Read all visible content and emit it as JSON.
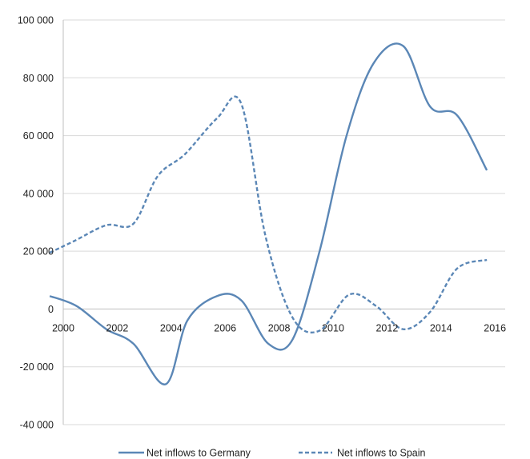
{
  "chart_data": {
    "type": "line",
    "title": "",
    "xlabel": "",
    "ylabel": "",
    "xlim": [
      1999.5,
      2015.7
    ],
    "ylim": [
      -40000,
      100000
    ],
    "x_ticks": [
      2000,
      2002,
      2004,
      2006,
      2008,
      2010,
      2012,
      2014,
      2016
    ],
    "y_ticks": [
      100000,
      80000,
      60000,
      40000,
      20000,
      0,
      -20000,
      -40000
    ],
    "y_tick_labels": [
      "100 000",
      "80 000",
      "60 000",
      "40 000",
      "20 000",
      "0",
      "-20 000",
      "-40 000"
    ],
    "x_tick_labels": [
      "2000",
      "2002",
      "2004",
      "2006",
      "2008",
      "2010",
      "2012",
      "2014",
      "2016"
    ],
    "grid": "horizontal",
    "legend_position": "bottom",
    "color": "#5b87b6",
    "series": [
      {
        "name": "Net inflows to Germany",
        "style": "solid",
        "x": [
          1999.5,
          2000.5,
          2001.6,
          2002.6,
          2003.8,
          2004.6,
          2005.7,
          2006.6,
          2007.6,
          2008.5,
          2009.5,
          2010.5,
          2011.5,
          2012.6,
          2013.6,
          2014.6,
          2015.7
        ],
        "y": [
          4500,
          1000,
          -7000,
          -12000,
          -26000,
          -4000,
          4500,
          3000,
          -12000,
          -10500,
          20000,
          60000,
          85000,
          91000,
          70000,
          67000,
          48000
        ]
      },
      {
        "name": "Net inflows to Spain",
        "style": "dashed",
        "x": [
          1999.5,
          2000.4,
          2001.6,
          2002.6,
          2003.5,
          2004.5,
          2005.7,
          2006.6,
          2007.5,
          2008.5,
          2009.5,
          2010.6,
          2011.6,
          2012.6,
          2013.6,
          2014.6,
          2015.7
        ],
        "y": [
          19500,
          23500,
          29000,
          29500,
          46000,
          53500,
          66000,
          71000,
          25000,
          -3000,
          -7500,
          5000,
          1000,
          -7000,
          -1000,
          14000,
          17000
        ]
      }
    ]
  }
}
